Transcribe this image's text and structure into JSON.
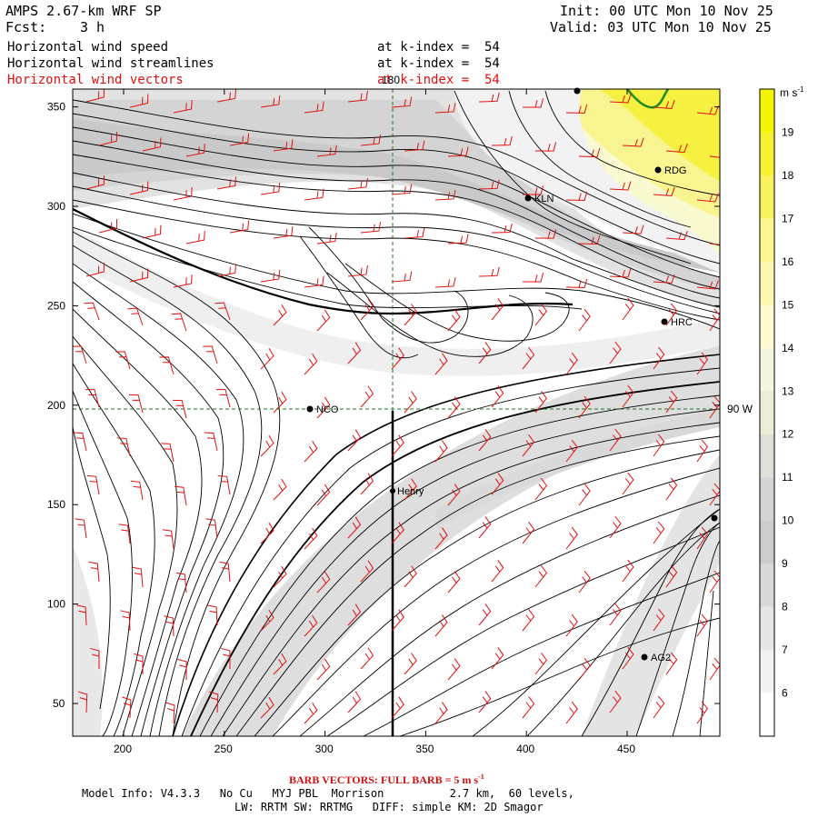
{
  "header": {
    "model": "AMPS 2.67-km WRF SP",
    "fcst_label": "Fcst:",
    "fcst_value": "3 h",
    "init": "Init: 00 UTC Mon 10 Nov 25",
    "valid": "Valid: 03 UTC Mon 10 Nov 25"
  },
  "fields": [
    {
      "name": "Horizontal wind speed",
      "level": "at k-index =  54",
      "color": "#000000"
    },
    {
      "name": "Horizontal wind streamlines",
      "level": "at k-index =  54",
      "color": "#000000"
    },
    {
      "name": "Horizontal wind vectors",
      "level": "at k-index =  54",
      "color": "#e01010"
    }
  ],
  "map": {
    "x_ticks": [
      "200",
      "250",
      "300",
      "350",
      "400",
      "450"
    ],
    "y_ticks": [
      "50",
      "100",
      "150",
      "200",
      "250",
      "300",
      "350"
    ],
    "meridian_label": "180",
    "parallel_label": "90 W",
    "stations": [
      {
        "id": "NCO",
        "label": "NCO"
      },
      {
        "id": "Henry",
        "label": "Henry"
      },
      {
        "id": "KLN",
        "label": "KLN"
      },
      {
        "id": "RDG",
        "label": "RDG"
      },
      {
        "id": "HRC",
        "label": "HRC"
      },
      {
        "id": "AG2",
        "label": "AG2"
      }
    ]
  },
  "colorbar": {
    "unit": "m s",
    "unit_exp": "-1",
    "levels": [
      "19",
      "18",
      "17",
      "16",
      "15",
      "14",
      "13",
      "12",
      "11",
      "10",
      "9",
      "8",
      "7",
      "6"
    ],
    "colors": [
      "#f5f500",
      "#f7f030",
      "#f9f360",
      "#fbf690",
      "#fcf8b0",
      "#fdfad0",
      "#f6f6de",
      "#ededd6",
      "#e0e0d8",
      "#d4d4d4",
      "#cccccc",
      "#d8d8d8",
      "#e6e6e6",
      "#f2f2f2",
      "#ffffff"
    ]
  },
  "footer": {
    "barb": "BARB VECTORS:  FULL BARB = 5 m s",
    "barb_exp": "-1",
    "model_info": "Model Info: V4.3.3   No Cu   MYJ PBL  Morrison          2.7 km,  60 levels,",
    "physics": "LW: RRTM SW: RRTMG   DIFF: simple KM: 2D Smagor"
  }
}
